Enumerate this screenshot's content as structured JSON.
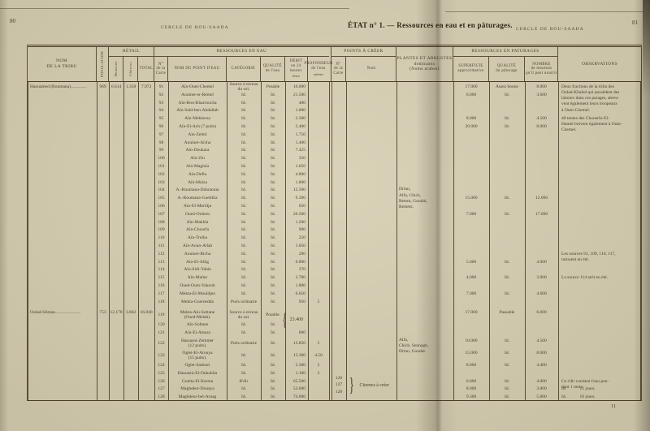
{
  "page": {
    "left_page_number": "80",
    "right_page_number": "81",
    "running_head_left": "CERCLE DE BOU-SAADA",
    "running_head_right": "CERCLE DE BOU-SAADA",
    "title_main": "ÉTAT n° 1.",
    "title_rest": " — Ressources en eau et en pâturages.",
    "footer_page_number": "11"
  },
  "table": {
    "header": {
      "nom_tribu": "NOM\nDE LA TRIBU",
      "population": "POPULATION",
      "betail": {
        "label": "BÉTAIL",
        "cols": [
          "Moutons",
          "Chèvres",
          "TOTAL"
        ]
      },
      "eau": {
        "label": "RESSOURCES EN EAU",
        "cols": [
          "N°\nde la\nCarte",
          "NOM DU POINT D'EAU",
          "CATÉGORIE",
          "QUALITÉ\nde l'eau",
          "DÉBIT\nen 24 heures",
          "PROFONDEUR\nde l'eau"
        ],
        "unit_debit": "litres",
        "unit_prof": "mètres"
      },
      "points": {
        "label": "POINTS À CRÉER",
        "cols": [
          "N°\nde la\nCarte",
          "Nom"
        ]
      },
      "plantes": "PLANTES ET ARBUSTES\ndominants\n(Noms arabes)",
      "paturages": {
        "label": "RESSOURCES EN PATURAGES",
        "cols": [
          "SUPERFICIE\napproximative",
          "QUALITÉ\ndu pâturage",
          "NOMBRE\nde moutons\nqu'il peut nourrir"
        ]
      },
      "observations": "OBSERVATIONS"
    },
    "groups": [
      {
        "tribe": "Haouamed (Roumana)..............",
        "population": "969",
        "moutons": "6.614",
        "chevres": "1.358",
        "total": "7.972",
        "water_rows": [
          {
            "no": "91",
            "name": "Aïn-Oum-Chemel",
            "cat": "Source à niveau\ndu sol.",
            "qual": "Potable",
            "debit": "10.000",
            "prof": ""
          },
          {
            "no": "92",
            "name": "Aouinet-er-Remel",
            "cat": "Id.",
            "qual": "Id.",
            "debit": "21.500",
            "prof": ""
          },
          {
            "no": "93",
            "name": "Aïn-Bou-Kharroucha",
            "cat": "Id.",
            "qual": "Id.",
            "debit": "400",
            "prof": ""
          },
          {
            "no": "94",
            "name": "Aïn-Saïd-ben-Abdallah",
            "cat": "Id.",
            "qual": "Id.",
            "debit": "1.000",
            "prof": ""
          },
          {
            "no": "95",
            "name": "Aïn-Mekhersa",
            "cat": "Id.",
            "qual": "Id.",
            "debit": "2.300",
            "prof": ""
          },
          {
            "no": "96",
            "name": "Aïn-El-Ach (7 puits)",
            "cat": "Id.",
            "qual": "Id.",
            "debit": "2.400",
            "prof": ""
          },
          {
            "no": "97",
            "name": "Aïn-Zelmi",
            "cat": "Id.",
            "qual": "Id.",
            "debit": "1.750",
            "prof": ""
          },
          {
            "no": "98",
            "name": "Aouinet-Aïcha",
            "cat": "Id.",
            "qual": "Id.",
            "debit": "1.400",
            "prof": ""
          },
          {
            "no": "99",
            "name": "Aïn-Doukara",
            "cat": "Id.",
            "qual": "Id.",
            "debit": "7.425",
            "prof": ""
          },
          {
            "no": "100",
            "name": "Aïn-Zin",
            "cat": "Id.",
            "qual": "Id.",
            "debit": "350",
            "prof": ""
          },
          {
            "no": "101",
            "name": "Aïn-Maglaïa",
            "cat": "Id.",
            "qual": "Id.",
            "debit": "1.650",
            "prof": ""
          },
          {
            "no": "102",
            "name": "Aïn-Defla",
            "cat": "Id.",
            "qual": "Id.",
            "debit": "4.800",
            "prof": ""
          },
          {
            "no": "103",
            "name": "Aïn-Maïza",
            "cat": "Id.",
            "qual": "Id.",
            "debit": "1.800",
            "prof": ""
          },
          {
            "no": "104",
            "name": "A.-Roumana-Dahraouïa",
            "cat": "Id.",
            "qual": "Id.",
            "debit": "12.500",
            "prof": ""
          },
          {
            "no": "105",
            "name": "A.-Roumana-Guebliïa",
            "cat": "Id.",
            "qual": "Id.",
            "debit": "9.390",
            "prof": ""
          },
          {
            "no": "106",
            "name": "Aïn-El-Merïdja",
            "cat": "Id.",
            "qual": "Id.",
            "debit": "650",
            "prof": ""
          },
          {
            "no": "107",
            "name": "Oued-Oultem",
            "cat": "Id.",
            "qual": "Id.",
            "debit": "20.500",
            "prof": ""
          },
          {
            "no": "108",
            "name": "Aïn-Makhla",
            "cat": "Id.",
            "qual": "Id.",
            "debit": "1.200",
            "prof": ""
          },
          {
            "no": "109",
            "name": "Aïn-Chourfa",
            "cat": "Id.",
            "qual": "Id.",
            "debit": "900",
            "prof": ""
          },
          {
            "no": "110",
            "name": "Aïn-Treïba",
            "cat": "Id.",
            "qual": "Id.",
            "debit": "250",
            "prof": ""
          },
          {
            "no": "111",
            "name": "Aïn-Aoun-Allah",
            "cat": "Id.",
            "qual": "Id.",
            "debit": "1.050",
            "prof": ""
          },
          {
            "no": "112",
            "name": "Aouinet-Richa",
            "cat": "Id.",
            "qual": "Id.",
            "debit": "200",
            "prof": ""
          },
          {
            "no": "113",
            "name": "Aïn-El-Allig",
            "cat": "Id.",
            "qual": "Id.",
            "debit": "6.800",
            "prof": ""
          },
          {
            "no": "114",
            "name": "Aïn-Sidi-Yahia",
            "cat": "Id.",
            "qual": "Id.",
            "debit": "370",
            "prof": ""
          },
          {
            "no": "115",
            "name": "Aïn-Maïter",
            "cat": "Id.",
            "qual": "Id.",
            "debit": "3.780",
            "prof": ""
          },
          {
            "no": "116",
            "name": "Oued-Oum-Yakoub",
            "cat": "Id.",
            "qual": "Id.",
            "debit": "1.800",
            "prof": ""
          },
          {
            "no": "117",
            "name": "Mekta-El-Mouïdjen",
            "cat": "Id.",
            "qual": "Id.",
            "debit": "6.650",
            "prof": ""
          },
          {
            "no": "118",
            "name": "Mekta-Guernedda",
            "cat": "Puits ordinaire",
            "qual": "Id.",
            "debit": "950",
            "prof": "5"
          }
        ]
      },
      {
        "tribe": "Oulad-Sliman.......................",
        "population": "753",
        "moutons": "12.178",
        "chevres": "3.862",
        "total": "16.040",
        "water_rows": [
          {
            "no": "119",
            "name": "Mekta-Aïn-Soltane\n(Oued-Melah).",
            "cat": "Source à niveau\ndu sol.",
            "qual": "Potable.",
            "debit": "",
            "prof": "",
            "tall": true
          },
          {
            "no": "120",
            "name": "Aïn-Soltane",
            "cat": "Id.",
            "qual": "Id.",
            "debit": "",
            "prof": ""
          },
          {
            "no": "121",
            "name": "Aïn-El-Amara",
            "cat": "Id.",
            "qual": "Id.",
            "debit": "600",
            "prof": ""
          },
          {
            "no": "122",
            "name": "Hassasni-Zemmer\n(12 puits).",
            "cat": "Puits ordinaire",
            "qual": "Id.",
            "debit": "13.850",
            "prof": "5",
            "tall": true
          },
          {
            "no": "123",
            "name": "Oglet-El-Arouya\n(15 puits).",
            "cat": "Id.",
            "qual": "Id.",
            "debit": "13.300",
            "prof": "4.50",
            "tall": true
          },
          {
            "no": "124",
            "name": "Oglet-Sadouri",
            "cat": "Id.",
            "qual": "Id.",
            "debit": "5.300",
            "prof": "2"
          },
          {
            "no": "125",
            "name": "Hassasni-El-Oukahila",
            "cat": "Id.",
            "qual": "Id.",
            "debit": "1.100",
            "prof": "2"
          },
          {
            "no": "126",
            "name": "Guelta-El-Kerma",
            "cat": "R'dir",
            "qual": "Id.",
            "debit": "65.500",
            "prof": ""
          },
          {
            "no": "127",
            "name": "Maghdeur-Douaya",
            "cat": "Id.",
            "qual": "Id.",
            "debit": "53.000",
            "prof": ""
          },
          {
            "no": "128",
            "name": "Maghdeur-bel-Arnag",
            "cat": "Id.",
            "qual": "Id.",
            "debit": "74.000",
            "prof": ""
          }
        ]
      }
    ],
    "debit_brace": {
      "at": "119",
      "value": "23.400"
    },
    "points_a_creer": {
      "at": "126",
      "numbers": [
        "126",
        "127",
        "128"
      ],
      "label": "Citernes à créer"
    },
    "plants": [
      {
        "at": "104",
        "text": "Drinn,\nAlfa, Chich,\nRetem, Goudal,\nRemets."
      },
      {
        "at": "122",
        "text": "Alfa,\nChich, Sennagh,\nDrinn, Goudal."
      }
    ],
    "pastures": [
      {
        "at": "91",
        "superficie": "17.000",
        "qualite": "Assez bonne",
        "nombre": "8.000"
      },
      {
        "at": "92",
        "superficie": "6.000",
        "qualite": "Id.",
        "nombre": "3.600"
      },
      {
        "at": "95",
        "superficie": "8.000",
        "qualite": "Id.",
        "nombre": "4.500"
      },
      {
        "at": "96",
        "superficie": "20.000",
        "qualite": "Id.",
        "nombre": "8.000"
      },
      {
        "at": "105",
        "superficie": "15.000",
        "qualite": "Id.",
        "nombre": "12.000"
      },
      {
        "at": "107",
        "superficie": "7.000",
        "qualite": "Id.",
        "nombre": "17.000"
      },
      {
        "at": "113",
        "superficie": "5.000",
        "qualite": "Id.",
        "nombre": "4.000"
      },
      {
        "at": "115",
        "superficie": "4.000",
        "qualite": "Id.",
        "nombre": "3.000"
      },
      {
        "at": "117",
        "superficie": "7.000",
        "qualite": "Id.",
        "nombre": "4.600"
      },
      {
        "at": "119",
        "superficie": "17.000",
        "qualite": "Passable",
        "nombre": "6.000"
      },
      {
        "at": "122",
        "superficie": "10.000",
        "qualite": "Id.",
        "nombre": "4.500"
      },
      {
        "at": "123",
        "superficie": "15.000",
        "qualite": "Id.",
        "nombre": "8.000"
      },
      {
        "at": "124",
        "superficie": "8.000",
        "qualite": "Id.",
        "nombre": "4.400"
      },
      {
        "at": "126",
        "superficie": "6.000",
        "qualite": "Id.",
        "nombre": "4.000"
      },
      {
        "at": "127",
        "superficie": "8.000",
        "qualite": "Id.",
        "nombre": "3.000"
      },
      {
        "at": "128",
        "superficie": "9.300",
        "qualite": "Id.",
        "nombre": "5.000"
      }
    ],
    "observations": [
      {
        "at": "91",
        "text": "Deux fractions de la tribu des\nOulad-Khaled qui possèdent des\nlabours dans ces parages, abreu-\nvent également leurs troupeaux\nà Oum-Chemel."
      },
      {
        "at": "95",
        "text": "40 tentes des Chouerfa-El-\nHamel boivent également à Oum-\nChemel."
      },
      {
        "at": "112",
        "text": "Les sources 91, 109, 110, 117,\ntarissent en été."
      },
      {
        "at": "115",
        "text": "La source 114 tarit en été."
      },
      {
        "at": "126",
        "text": "Ce r'dir contient l'eau pen-\ndant 1 mois."
      },
      {
        "at": "127",
        "text": "Id.      15 jours."
      },
      {
        "at": "128",
        "text": "Id.      10 jours."
      }
    ]
  }
}
